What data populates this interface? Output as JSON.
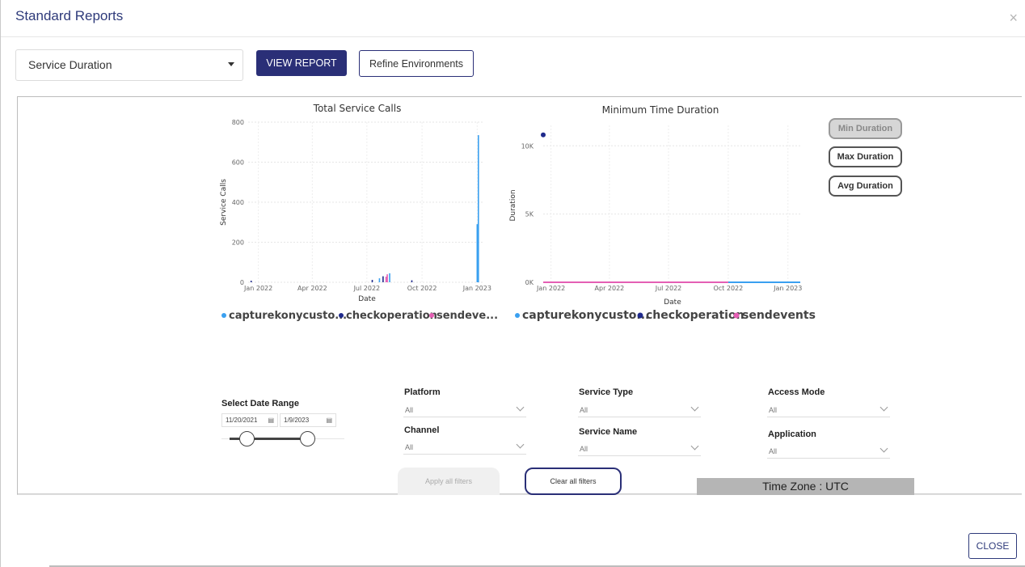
{
  "header": {
    "title": "Standard Reports",
    "close_symbol": "×"
  },
  "toolbar": {
    "report_select_value": "Service Duration",
    "view_report_label": "VIEW REPORT",
    "refine_label": "Refine Environments"
  },
  "charts": {
    "left_title": "Total Service Calls",
    "left_ylabel": "Service Calls",
    "left_xlabel": "Date",
    "left_legend": [
      "capturekonycusto...",
      "checkoperation",
      "sendeve..."
    ],
    "left_yticks": [
      "800",
      "600",
      "400",
      "200",
      "0"
    ],
    "left_xticks": [
      "Jan 2022",
      "Apr 2022",
      "Jul 2022",
      "Oct 2022",
      "Jan 2023"
    ],
    "right_title": "Minimum Time Duration",
    "right_ylabel": "Duration",
    "right_xlabel": "Date",
    "right_legend": [
      "capturekonycusto...",
      "checkoperation",
      "sendevents"
    ],
    "right_yticks": [
      "10K",
      "5K",
      "0K"
    ],
    "right_xticks": [
      "Jan 2022",
      "Apr 2022",
      "Jul 2022",
      "Oct 2022",
      "Jan 2023"
    ]
  },
  "chart_data": [
    {
      "type": "bar",
      "title": "Total Service Calls",
      "xlabel": "Date",
      "ylabel": "Service Calls",
      "ylim": [
        0,
        800
      ],
      "x_range": [
        "2021-12-15",
        "2023-01-10"
      ],
      "series": [
        {
          "name": "capturekonycusto...",
          "color": "#3aa0f0",
          "points": [
            {
              "x": "2022-07-22",
              "y": 20
            },
            {
              "x": "2022-08-08",
              "y": 45
            },
            {
              "x": "2023-01-01",
              "y": 290
            },
            {
              "x": "2023-01-02",
              "y": 290
            },
            {
              "x": "2023-01-03",
              "y": 735
            }
          ]
        },
        {
          "name": "checkoperation",
          "color": "#1f2a8c",
          "points": [
            {
              "x": "2021-12-20",
              "y": 8
            },
            {
              "x": "2022-07-10",
              "y": 12
            },
            {
              "x": "2022-07-28",
              "y": 30
            },
            {
              "x": "2022-09-14",
              "y": 10
            }
          ]
        },
        {
          "name": "sendeve...",
          "color": "#e45fb4",
          "points": [
            {
              "x": "2022-08-02",
              "y": 28
            },
            {
              "x": "2022-08-04",
              "y": 40
            }
          ]
        }
      ],
      "legend": "bottom"
    },
    {
      "type": "line",
      "title": "Minimum Time Duration",
      "xlabel": "Date",
      "ylabel": "Duration",
      "ylim": [
        0,
        11500
      ],
      "x_range": [
        "2021-12-20",
        "2023-01-20"
      ],
      "series": [
        {
          "name": "capturekonycusto...",
          "color": "#3aa0f0",
          "points": [
            {
              "x": "2022-10-01",
              "y": 0
            },
            {
              "x": "2023-01-20",
              "y": 0
            }
          ]
        },
        {
          "name": "checkoperation",
          "color": "#1f2a8c",
          "points": [
            {
              "x": "2021-12-20",
              "y": 10800
            }
          ]
        },
        {
          "name": "sendevents",
          "color": "#e45fb4",
          "points": [
            {
              "x": "2021-12-20",
              "y": 0
            },
            {
              "x": "2022-10-01",
              "y": 0
            }
          ]
        }
      ],
      "legend": "bottom"
    }
  ],
  "duration_toggles": {
    "min": "Min Duration",
    "max": "Max Duration",
    "avg": "Avg Duration",
    "active": "min"
  },
  "filters": {
    "date_range_label": "Select Date Range",
    "date_start": "11/20/2021",
    "date_end": "1/9/2023",
    "platform_label": "Platform",
    "platform_value": "All",
    "channel_label": "Channel",
    "channel_value": "All",
    "service_type_label": "Service Type",
    "service_type_value": "All",
    "service_name_label": "Service Name",
    "service_name_value": "All",
    "access_mode_label": "Access Mode",
    "access_mode_value": "All",
    "application_label": "Application",
    "application_value": "All",
    "apply_label": "Apply all filters",
    "clear_label": "Clear all filters",
    "timezone_label": "Time Zone : UTC"
  },
  "footer": {
    "close_label": "CLOSE"
  },
  "colors": {
    "accent": "#2a2f77",
    "capture": "#3aa0f0",
    "check": "#1f2a8c",
    "send": "#e45fb4"
  }
}
